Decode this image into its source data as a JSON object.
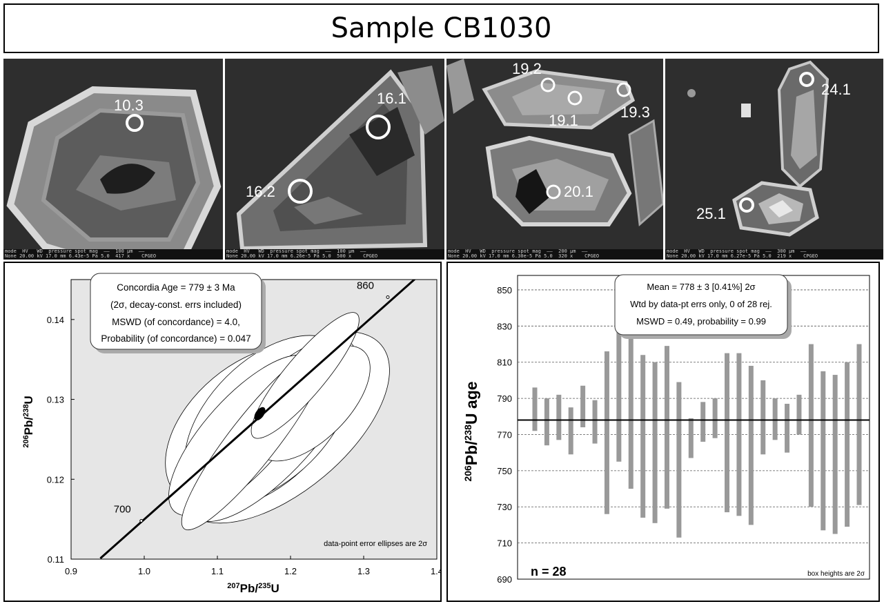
{
  "title": "Sample CB1030",
  "sem_images": [
    {
      "spots": [
        "10.3"
      ],
      "footer": "mode  HV   WD  pressure spot mag  ——  100 µm  ——\nNone 20.00 kV 17.0 mm 6.43e-5 Pa 5.0  417 x    CPGEO"
    },
    {
      "spots": [
        "16.1",
        "16.2"
      ],
      "footer": "mode  HV   WD  pressure spot mag  ——  100 µm  ——\nNone 20.00 kV 17.0 mm 6.26e-5 Pa 5.0  500 x    CPGEO"
    },
    {
      "spots": [
        "19.2",
        "19.1",
        "19.3",
        "20.1"
      ],
      "footer": "mode  HV   WD  pressure spot mag  ——  200 µm  ——\nNone 20.00 kV 17.0 mm 6.30e-5 Pa 5.0  320 x    CPGEO"
    },
    {
      "spots": [
        "24.1",
        "25.1"
      ],
      "footer": "mode  HV   WD  pressure spot mag  ——  300 µm  ——\nNone 20.00 kV 17.0 mm 6.27e-5 Pa 5.0  219 x    CPGEO"
    }
  ],
  "chart_data": [
    {
      "type": "scatter",
      "subtype": "concordia",
      "x_axis_sup": "207",
      "x_axis_elem1": "Pb/",
      "x_axis_sup2": "235",
      "x_axis_elem2": "U",
      "y_axis_sup": "206",
      "y_axis_elem1": "Pb/",
      "y_axis_sup2": "238",
      "y_axis_elem2": "U",
      "xlim": [
        0.9,
        1.4
      ],
      "ylim": [
        0.11,
        0.145
      ],
      "x_ticks": [
        "0.9",
        "1.0",
        "1.1",
        "1.2",
        "1.3",
        "1.4"
      ],
      "y_ticks": [
        "0.11",
        "0.12",
        "0.13",
        "0.14"
      ],
      "concordia_age_labels": [
        {
          "age": "700",
          "x": 0.996,
          "y": 0.1148
        },
        {
          "age": "860",
          "x": 1.333,
          "y": 0.1428
        }
      ],
      "concordia_line": [
        [
          0.94,
          0.1101
        ],
        [
          1.4,
          0.1475
        ]
      ],
      "concordia_age_point": {
        "x": 1.158,
        "y": 0.1282,
        "rx": 0.008,
        "ry": 0.0004
      },
      "error_ellipses": [
        {
          "cx": 1.19,
          "cy": 0.1265,
          "rx": 0.175,
          "ry": 0.008,
          "rot": -40
        },
        {
          "cx": 1.15,
          "cy": 0.1265,
          "rx": 0.14,
          "ry": 0.008,
          "rot": -40
        },
        {
          "cx": 1.17,
          "cy": 0.1275,
          "rx": 0.14,
          "ry": 0.0075,
          "rot": -45
        },
        {
          "cx": 1.175,
          "cy": 0.1262,
          "rx": 0.16,
          "ry": 0.0055,
          "rot": -48
        },
        {
          "cx": 1.135,
          "cy": 0.1255,
          "rx": 0.14,
          "ry": 0.0048,
          "rot": -48
        },
        {
          "cx": 1.23,
          "cy": 0.1295,
          "rx": 0.1,
          "ry": 0.0045,
          "rot": -45
        },
        {
          "cx": 1.15,
          "cy": 0.125,
          "rx": 0.155,
          "ry": 0.003,
          "rot": -52
        },
        {
          "cx": 1.22,
          "cy": 0.133,
          "rx": 0.11,
          "ry": 0.0025,
          "rot": -50
        }
      ],
      "info_box": [
        "Concordia Age = 779 ± 3 Ma",
        "(2σ, decay-const. errs included)",
        "MSWD (of concordance) = 4.0,",
        "Probability (of concordance) = 0.047"
      ],
      "note": "data-point error ellipses are 2σ"
    },
    {
      "type": "bar",
      "subtype": "weighted-mean",
      "y_axis_sup": "206",
      "y_axis_elem1": "Pb/",
      "y_axis_sup2": "238",
      "y_axis_elem2": "U age",
      "ylim": [
        690,
        858
      ],
      "y_ticks": [
        "690",
        "710",
        "730",
        "750",
        "770",
        "790",
        "810",
        "830",
        "850"
      ],
      "mean": 778,
      "boxes": [
        [
          772,
          796
        ],
        [
          764,
          790
        ],
        [
          767,
          792
        ],
        [
          759,
          785
        ],
        [
          774,
          797
        ],
        [
          765,
          789
        ],
        [
          726,
          816
        ],
        [
          755,
          856
        ],
        [
          740,
          856
        ],
        [
          724,
          814
        ],
        [
          721,
          810
        ],
        [
          729,
          819
        ],
        [
          713,
          799
        ],
        [
          757,
          779
        ],
        [
          766,
          788
        ],
        [
          768,
          790
        ],
        [
          727,
          815
        ],
        [
          725,
          815
        ],
        [
          720,
          808
        ],
        [
          759,
          800
        ],
        [
          767,
          790
        ],
        [
          760,
          787
        ],
        [
          770,
          792
        ],
        [
          730,
          820
        ],
        [
          717,
          805
        ],
        [
          715,
          803
        ],
        [
          719,
          810
        ],
        [
          731,
          820
        ]
      ],
      "info_box": [
        "Mean = 778 ± 3  [0.41%]  2σ",
        "Wtd by data-pt errs only, 0 of 28 rej.",
        "MSWD = 0.49, probability = 0.99"
      ],
      "n_label": "n = 28",
      "note": "box heights are 2σ"
    }
  ]
}
